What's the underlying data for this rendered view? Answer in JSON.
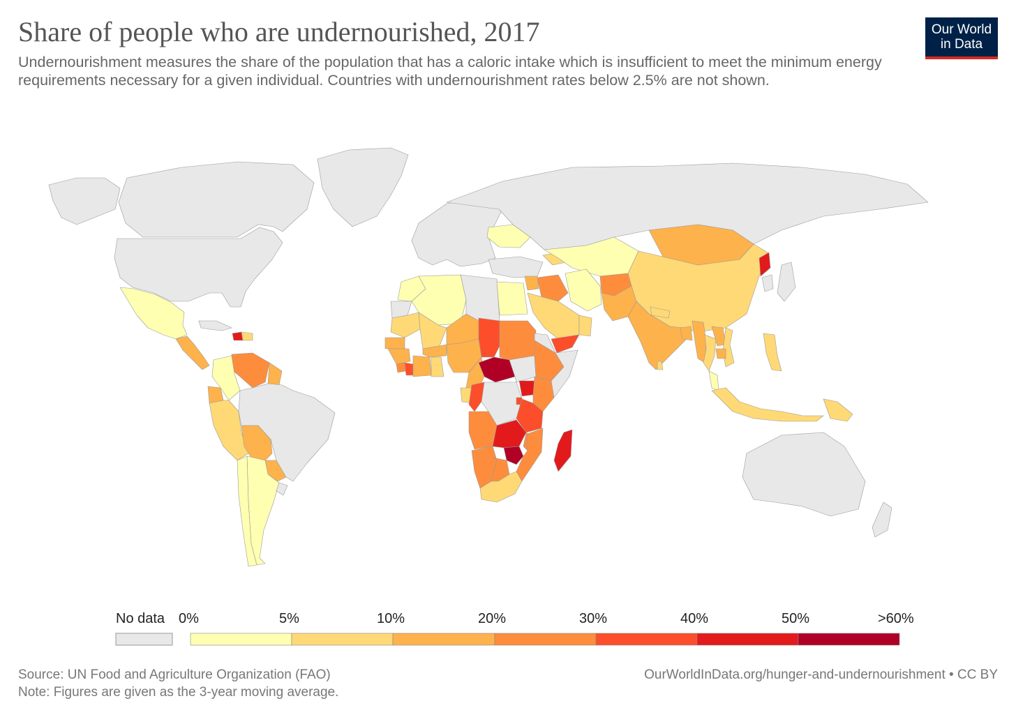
{
  "header": {
    "title": "Share of people who are undernourished, 2017",
    "subtitle": "Undernourishment measures the share of the population that has a caloric intake which is insufficient to meet the minimum energy requirements necessary for a given individual. Countries with undernourishment rates below 2.5% are not shown."
  },
  "logo": {
    "line1": "Our World",
    "line2": "in Data",
    "bg": "#002147",
    "accent": "#d42b21"
  },
  "colors": {
    "no_data": "#e8e8e8",
    "bins": [
      "#ffffb2",
      "#fed976",
      "#feb24c",
      "#fd8d3c",
      "#fc4e2a",
      "#e31a1c",
      "#b10026"
    ]
  },
  "legend": {
    "no_data_label": "No data",
    "ticks": [
      "0%",
      "5%",
      "10%",
      "20%",
      "30%",
      "40%",
      "50%",
      ">60%"
    ]
  },
  "footer": {
    "source": "Source: UN Food and Agriculture Organization (FAO)",
    "note": "Note: Figures are given as the 3-year moving average.",
    "url": "OurWorldInData.org/hunger-and-undernourishment • CC BY"
  },
  "regions": [
    {
      "name": "Canada",
      "bin": -1
    },
    {
      "name": "Greenland",
      "bin": -1
    },
    {
      "name": "United States",
      "bin": -1
    },
    {
      "name": "Alaska",
      "bin": -1
    },
    {
      "name": "Mexico",
      "bin": 0
    },
    {
      "name": "Central America",
      "bin": 2
    },
    {
      "name": "Haiti",
      "bin": 5
    },
    {
      "name": "Dominican Republic",
      "bin": 1
    },
    {
      "name": "Cuba",
      "bin": -1
    },
    {
      "name": "Venezuela",
      "bin": 3
    },
    {
      "name": "Guyana",
      "bin": 2
    },
    {
      "name": "Colombia",
      "bin": 0
    },
    {
      "name": "Ecuador",
      "bin": 2
    },
    {
      "name": "Peru",
      "bin": 1
    },
    {
      "name": "Bolivia",
      "bin": 2
    },
    {
      "name": "Paraguay",
      "bin": 2
    },
    {
      "name": "Brazil",
      "bin": -1
    },
    {
      "name": "Argentina",
      "bin": 0
    },
    {
      "name": "Chile",
      "bin": 0
    },
    {
      "name": "Uruguay",
      "bin": -1
    },
    {
      "name": "Europe",
      "bin": -1
    },
    {
      "name": "Ukraine",
      "bin": 0
    },
    {
      "name": "Russia",
      "bin": -1
    },
    {
      "name": "Turkey",
      "bin": -1
    },
    {
      "name": "Caucasus",
      "bin": 1
    },
    {
      "name": "Central Asia",
      "bin": 0
    },
    {
      "name": "Mongolia",
      "bin": 2
    },
    {
      "name": "China",
      "bin": 1
    },
    {
      "name": "North Korea",
      "bin": 5
    },
    {
      "name": "South Korea",
      "bin": -1
    },
    {
      "name": "Japan",
      "bin": -1
    },
    {
      "name": "Iran",
      "bin": 0
    },
    {
      "name": "Iraq",
      "bin": 3
    },
    {
      "name": "Syria",
      "bin": 2
    },
    {
      "name": "Saudi Arabia",
      "bin": 1
    },
    {
      "name": "Oman",
      "bin": 1
    },
    {
      "name": "Yemen",
      "bin": 4
    },
    {
      "name": "Afghanistan",
      "bin": 3
    },
    {
      "name": "Pakistan",
      "bin": 2
    },
    {
      "name": "India",
      "bin": 2
    },
    {
      "name": "Nepal",
      "bin": 1
    },
    {
      "name": "Bangladesh",
      "bin": 2
    },
    {
      "name": "Sri Lanka",
      "bin": 1
    },
    {
      "name": "Myanmar",
      "bin": 2
    },
    {
      "name": "Thailand",
      "bin": 1
    },
    {
      "name": "Laos",
      "bin": 2
    },
    {
      "name": "Vietnam",
      "bin": 1
    },
    {
      "name": "Cambodia",
      "bin": 2
    },
    {
      "name": "Malaysia",
      "bin": 0
    },
    {
      "name": "Philippines",
      "bin": 1
    },
    {
      "name": "Indonesia",
      "bin": 1
    },
    {
      "name": "Papua New Guinea",
      "bin": 1
    },
    {
      "name": "Australia",
      "bin": -1
    },
    {
      "name": "New Zealand",
      "bin": -1
    },
    {
      "name": "Morocco",
      "bin": 0
    },
    {
      "name": "Algeria",
      "bin": 0
    },
    {
      "name": "Libya",
      "bin": -1
    },
    {
      "name": "Egypt",
      "bin": 0
    },
    {
      "name": "Western Sahara",
      "bin": -1
    },
    {
      "name": "Mauritania",
      "bin": 1
    },
    {
      "name": "Mali",
      "bin": 1
    },
    {
      "name": "Niger",
      "bin": 2
    },
    {
      "name": "Chad",
      "bin": 4
    },
    {
      "name": "Sudan",
      "bin": 3
    },
    {
      "name": "Senegal",
      "bin": 2
    },
    {
      "name": "Guinea",
      "bin": 2
    },
    {
      "name": "Sierra Leone",
      "bin": 3
    },
    {
      "name": "Liberia",
      "bin": 4
    },
    {
      "name": "Cote d'Ivoire",
      "bin": 2
    },
    {
      "name": "Burkina Faso",
      "bin": 2
    },
    {
      "name": "Ghana",
      "bin": 1
    },
    {
      "name": "Nigeria",
      "bin": 2
    },
    {
      "name": "Cameroon",
      "bin": 2
    },
    {
      "name": "Central African Republic",
      "bin": 6
    },
    {
      "name": "South Sudan",
      "bin": -1
    },
    {
      "name": "Ethiopia",
      "bin": 3
    },
    {
      "name": "Eritrea",
      "bin": -1
    },
    {
      "name": "Somalia",
      "bin": -1
    },
    {
      "name": "Gabon",
      "bin": 1
    },
    {
      "name": "Congo",
      "bin": 4
    },
    {
      "name": "DR Congo",
      "bin": -1
    },
    {
      "name": "Uganda",
      "bin": 5
    },
    {
      "name": "Kenya",
      "bin": 3
    },
    {
      "name": "Rwanda",
      "bin": 4
    },
    {
      "name": "Tanzania",
      "bin": 4
    },
    {
      "name": "Angola",
      "bin": 3
    },
    {
      "name": "Zambia",
      "bin": 5
    },
    {
      "name": "Malawi",
      "bin": 3
    },
    {
      "name": "Mozambique",
      "bin": 3
    },
    {
      "name": "Zimbabwe",
      "bin": 6
    },
    {
      "name": "Namibia",
      "bin": 3
    },
    {
      "name": "Botswana",
      "bin": 3
    },
    {
      "name": "South Africa",
      "bin": 1
    },
    {
      "name": "Madagascar",
      "bin": 5
    }
  ]
}
